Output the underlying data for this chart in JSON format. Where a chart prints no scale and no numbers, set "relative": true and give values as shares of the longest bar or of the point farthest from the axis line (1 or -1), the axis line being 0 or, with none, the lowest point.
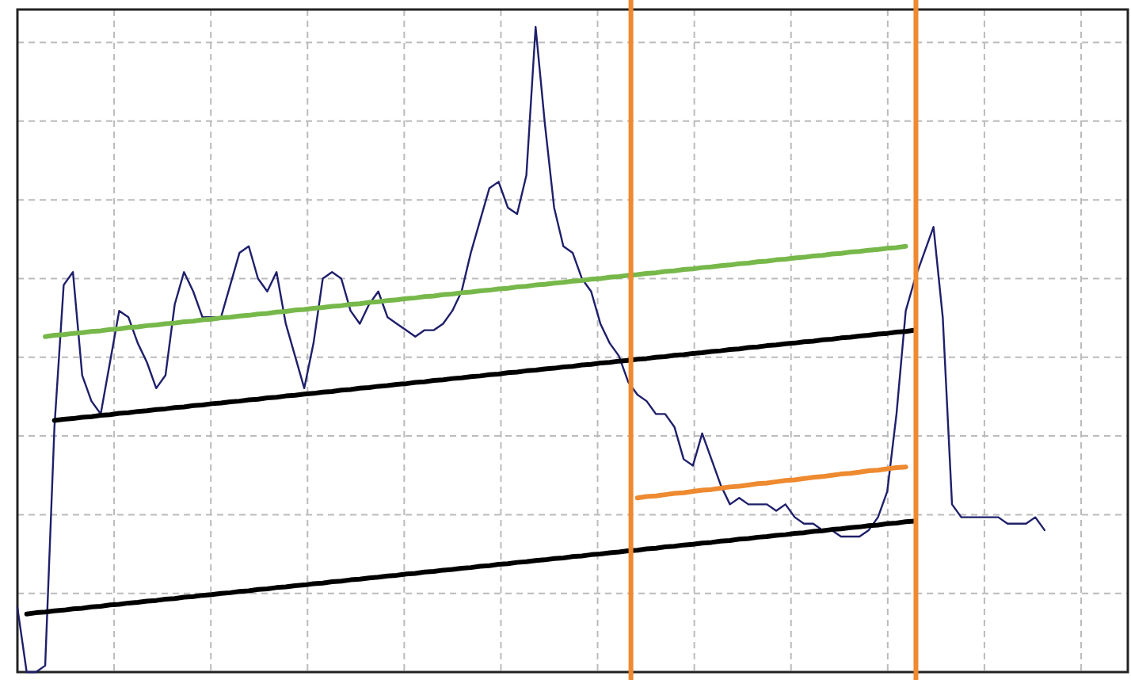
{
  "chart_data": {
    "type": "line",
    "relative": true,
    "grid": true,
    "categories": [
      null,
      null,
      null,
      null,
      null,
      null,
      null,
      null,
      null,
      null,
      null,
      null,
      null,
      null,
      null,
      null,
      null,
      null,
      null,
      null,
      null,
      null,
      null,
      null,
      null,
      null,
      null,
      null,
      null,
      null,
      null,
      null,
      null,
      null,
      null,
      null,
      null,
      null,
      null,
      null,
      null,
      null,
      null,
      null,
      null,
      null,
      null,
      null,
      null,
      null,
      null,
      null,
      null,
      null,
      null,
      null,
      null,
      null,
      null,
      null,
      null,
      null,
      null,
      null,
      null,
      null,
      null,
      null,
      null,
      null,
      null,
      null,
      null,
      null,
      null,
      null,
      null,
      null,
      null,
      null,
      null,
      null,
      null,
      null,
      null,
      null,
      null,
      null,
      null,
      null,
      null,
      null,
      null,
      null,
      null,
      null,
      null,
      null,
      null,
      null,
      null,
      null,
      null,
      null,
      null,
      null,
      null,
      null,
      null,
      null,
      null,
      null,
      null,
      null,
      null,
      null,
      null,
      null,
      null,
      null,
      null
    ],
    "series": [
      {
        "color": "#1f1f6b",
        "values": [
          0.1,
          0.0,
          0.0,
          0.01,
          0.38,
          0.6,
          0.62,
          0.46,
          0.42,
          0.4,
          0.48,
          0.56,
          0.55,
          0.51,
          0.48,
          0.44,
          0.46,
          0.57,
          0.62,
          0.59,
          0.55,
          0.55,
          0.55,
          0.6,
          0.65,
          0.66,
          0.61,
          0.59,
          0.62,
          0.54,
          0.49,
          0.44,
          0.51,
          0.61,
          0.62,
          0.61,
          0.56,
          0.54,
          0.57,
          0.59,
          0.55,
          0.54,
          0.53,
          0.52,
          0.53,
          0.53,
          0.54,
          0.56,
          0.59,
          0.65,
          0.7,
          0.75,
          0.76,
          0.72,
          0.71,
          0.77,
          1.0,
          0.85,
          0.72,
          0.66,
          0.65,
          0.61,
          0.59,
          0.54,
          0.51,
          0.49,
          0.45,
          0.43,
          0.42,
          0.4,
          0.4,
          0.38,
          0.33,
          0.32,
          0.37,
          0.33,
          0.29,
          0.26,
          0.27,
          0.26,
          0.26,
          0.26,
          0.25,
          0.26,
          0.24,
          0.23,
          0.23,
          0.22,
          0.22,
          0.21,
          0.21,
          0.21,
          0.22,
          0.24,
          0.28,
          0.4,
          0.56,
          0.61,
          0.65,
          0.69,
          0.55,
          0.26,
          0.24,
          0.24,
          0.24,
          0.24,
          0.24,
          0.23,
          0.23,
          0.23,
          0.24,
          0.22,
          null,
          null,
          null,
          null,
          null,
          null,
          null,
          null,
          null
        ]
      },
      {
        "type": "line",
        "color": "#77b84a",
        "values": [
          null,
          null,
          null,
          0.52,
          0.522,
          0.523,
          0.525,
          0.526,
          0.528,
          0.529,
          0.531,
          0.532,
          0.534,
          0.535,
          0.537,
          0.538,
          0.54,
          0.541,
          0.543,
          0.544,
          0.546,
          0.547,
          0.549,
          0.55,
          0.552,
          0.553,
          0.555,
          0.556,
          0.558,
          0.559,
          0.561,
          0.562,
          0.564,
          0.565,
          0.567,
          0.568,
          0.57,
          0.571,
          0.573,
          0.574,
          0.576,
          0.577,
          0.579,
          0.58,
          0.582,
          0.583,
          0.585,
          0.586,
          0.588,
          0.589,
          0.591,
          0.592,
          0.594,
          0.595,
          0.597,
          0.598,
          0.6,
          0.601,
          0.603,
          0.604,
          0.606,
          0.607,
          0.609,
          0.61,
          0.612,
          0.613,
          0.615,
          0.616,
          0.618,
          0.619,
          0.621,
          0.622,
          0.624,
          0.625,
          0.627,
          0.628,
          0.63,
          0.631,
          0.633,
          0.634,
          0.636,
          0.637,
          0.639,
          0.64,
          0.642,
          0.643,
          0.645,
          0.646,
          0.648,
          0.649,
          0.651,
          0.652,
          0.654,
          0.655,
          0.657,
          0.658,
          0.66,
          null,
          null,
          null,
          null,
          null,
          null,
          null,
          null,
          null,
          null,
          null,
          null,
          null,
          null,
          null,
          null,
          null,
          null,
          null,
          null,
          null,
          null,
          null,
          null
        ]
      },
      {
        "type": "line",
        "color": "#000000",
        "values": [
          null,
          null,
          null,
          null,
          0.39,
          0.392,
          0.393,
          0.395,
          0.396,
          0.398,
          0.399,
          0.401,
          0.402,
          0.404,
          0.405,
          0.407,
          0.408,
          0.41,
          0.411,
          0.413,
          0.414,
          0.416,
          0.417,
          0.419,
          0.42,
          0.422,
          0.423,
          0.425,
          0.426,
          0.428,
          0.429,
          0.431,
          0.432,
          0.434,
          0.435,
          0.437,
          0.438,
          0.44,
          0.441,
          0.443,
          0.444,
          0.446,
          0.447,
          0.449,
          0.45,
          0.452,
          0.453,
          0.455,
          0.456,
          0.458,
          0.459,
          0.461,
          0.462,
          0.464,
          0.465,
          0.467,
          0.468,
          0.47,
          0.471,
          0.473,
          0.474,
          0.476,
          0.477,
          0.479,
          0.48,
          0.482,
          0.483,
          0.485,
          0.486,
          0.488,
          0.489,
          0.491,
          0.492,
          0.494,
          0.495,
          0.497,
          0.498,
          0.5,
          0.501,
          0.503,
          0.504,
          0.506,
          0.507,
          0.509,
          0.51,
          0.512,
          0.513,
          0.515,
          0.516,
          0.518,
          0.519,
          0.521,
          0.522,
          0.524,
          0.525,
          0.527,
          0.528,
          0.53,
          null,
          null,
          null,
          null,
          null,
          null,
          null,
          null,
          null,
          null,
          null,
          null,
          null,
          null,
          null,
          null,
          null,
          null,
          null,
          null,
          null,
          null,
          null
        ]
      },
      {
        "type": "line",
        "color": "#000000",
        "values": [
          null,
          0.09,
          0.092,
          0.093,
          0.095,
          0.096,
          0.098,
          0.099,
          0.101,
          0.102,
          0.104,
          0.105,
          0.107,
          0.108,
          0.11,
          0.111,
          0.113,
          0.114,
          0.116,
          0.117,
          0.119,
          0.12,
          0.122,
          0.123,
          0.125,
          0.126,
          0.128,
          0.129,
          0.131,
          0.132,
          0.134,
          0.135,
          0.137,
          0.138,
          0.14,
          0.141,
          0.143,
          0.144,
          0.146,
          0.147,
          0.149,
          0.15,
          0.152,
          0.153,
          0.155,
          0.156,
          0.158,
          0.159,
          0.161,
          0.162,
          0.164,
          0.165,
          0.167,
          0.168,
          0.17,
          0.171,
          0.173,
          0.174,
          0.176,
          0.177,
          0.179,
          0.18,
          0.182,
          0.183,
          0.185,
          0.186,
          0.188,
          0.189,
          0.191,
          0.192,
          0.194,
          0.195,
          0.197,
          0.198,
          0.2,
          0.201,
          0.203,
          0.204,
          0.206,
          0.207,
          0.209,
          0.21,
          0.212,
          0.213,
          0.215,
          0.216,
          0.218,
          0.219,
          0.221,
          0.222,
          0.224,
          0.225,
          0.227,
          0.228,
          0.23,
          0.231,
          0.233,
          0.234,
          null,
          null,
          null,
          null,
          null,
          null,
          null,
          null,
          null,
          null,
          null,
          null,
          null,
          null,
          null,
          null,
          null,
          null,
          null,
          null,
          null,
          null,
          null
        ]
      },
      {
        "type": "line",
        "color": "#ee8a30",
        "values": [
          null,
          null,
          null,
          null,
          null,
          null,
          null,
          null,
          null,
          null,
          null,
          null,
          null,
          null,
          null,
          null,
          null,
          null,
          null,
          null,
          null,
          null,
          null,
          null,
          null,
          null,
          null,
          null,
          null,
          null,
          null,
          null,
          null,
          null,
          null,
          null,
          null,
          null,
          null,
          null,
          null,
          null,
          null,
          null,
          null,
          null,
          null,
          null,
          null,
          null,
          null,
          null,
          null,
          null,
          null,
          null,
          null,
          null,
          null,
          null,
          null,
          null,
          null,
          null,
          null,
          null,
          null,
          0.27,
          0.272,
          0.273,
          0.275,
          0.277,
          0.278,
          0.28,
          0.282,
          0.283,
          0.285,
          0.287,
          0.288,
          0.29,
          0.292,
          0.293,
          0.295,
          0.297,
          0.298,
          0.3,
          0.302,
          0.303,
          0.305,
          0.307,
          0.308,
          0.31,
          0.312,
          0.313,
          0.315,
          0.317,
          0.318,
          null,
          null,
          null,
          null,
          null,
          null,
          null,
          null,
          null,
          null,
          null,
          null,
          null,
          null,
          null,
          null,
          null,
          null,
          null,
          null,
          null,
          null,
          null,
          null
        ]
      }
    ]
  }
}
